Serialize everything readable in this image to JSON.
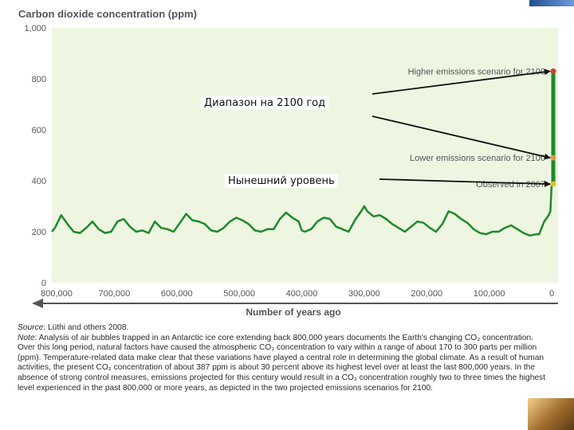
{
  "chart_data": {
    "type": "line",
    "title": "Carbon dioxide concentration (ppm)",
    "xlabel": "Number of years ago",
    "ylabel": "",
    "x_reversed": true,
    "xlim": [
      800000,
      0
    ],
    "ylim": [
      0,
      1000
    ],
    "x_ticks": [
      800000,
      700000,
      600000,
      500000,
      400000,
      300000,
      200000,
      100000,
      0
    ],
    "x_tick_labels": [
      "800,000",
      "700,000",
      "600,000",
      "500,000",
      "400,000",
      "300,000",
      "200,000",
      "100,000",
      "0"
    ],
    "y_ticks": [
      0,
      200,
      400,
      600,
      800,
      1000
    ],
    "y_tick_labels": [
      "0",
      "200",
      "400",
      "600",
      "800",
      "1,000"
    ],
    "grid": false,
    "series": [
      {
        "color": "#1e8a2a",
        "x": [
          800000,
          795000,
          785000,
          775000,
          765000,
          755000,
          745000,
          735000,
          725000,
          715000,
          705000,
          695000,
          685000,
          675000,
          665000,
          655000,
          645000,
          635000,
          625000,
          615000,
          605000,
          595000,
          585000,
          575000,
          565000,
          555000,
          545000,
          535000,
          525000,
          515000,
          505000,
          495000,
          485000,
          475000,
          465000,
          455000,
          445000,
          435000,
          425000,
          415000,
          405000,
          400000,
          395000,
          385000,
          375000,
          365000,
          355000,
          345000,
          335000,
          325000,
          315000,
          305000,
          300000,
          295000,
          285000,
          275000,
          265000,
          255000,
          245000,
          235000,
          225000,
          215000,
          205000,
          195000,
          185000,
          175000,
          165000,
          155000,
          145000,
          135000,
          125000,
          115000,
          105000,
          95000,
          85000,
          75000,
          65000,
          55000,
          45000,
          35000,
          25000,
          20000,
          12000,
          6000,
          2000,
          0
        ],
        "y": [
          200,
          215,
          265,
          230,
          200,
          195,
          215,
          240,
          210,
          195,
          200,
          240,
          250,
          220,
          200,
          205,
          195,
          240,
          215,
          210,
          200,
          235,
          270,
          245,
          240,
          230,
          205,
          200,
          215,
          240,
          255,
          245,
          230,
          205,
          200,
          210,
          210,
          250,
          275,
          255,
          240,
          205,
          200,
          210,
          240,
          255,
          250,
          220,
          210,
          200,
          245,
          280,
          300,
          280,
          260,
          265,
          250,
          230,
          215,
          200,
          220,
          240,
          235,
          215,
          200,
          230,
          280,
          270,
          250,
          235,
          210,
          195,
          190,
          200,
          200,
          215,
          225,
          210,
          195,
          185,
          190,
          190,
          240,
          260,
          280,
          387
        ]
      }
    ],
    "projections": [
      {
        "label": "Higher emissions scenario for 2100",
        "value": 830,
        "marker_color": "#d7402a"
      },
      {
        "label": "Lower emissions scenario for 2100",
        "value": 490,
        "marker_color": "#e49a3a"
      },
      {
        "label": "Observed in 2007",
        "value": 387,
        "marker_color": "#e8c030"
      }
    ]
  },
  "overlay": {
    "range_label": "Диапазон на 2100 год",
    "current_label": "Нынешний уровень"
  },
  "caption": {
    "source_key": "Source",
    "source_text": ": Lüthi and others 2008.",
    "note_key": "Note",
    "note_text": ": Analysis of air bubbles trapped in an Antarctic ice core extending back 800,000 years documents the Earth's changing CO₂ concentration. Over this long period, natural factors have caused the atmospheric CO₂ concentration to vary within a range of about 170 to 300 parts per million (ppm). Temperature-related data make clear that these variations have played a central role in determining the global climate. As a result of human activities, the present CO₂ concentration of about 387 ppm is about 30 percent above its highest level over at least the last 800,000 years. In the absence of strong control measures, emissions projected for this century would result in a CO₂ concentration roughly two to three times the highest level experienced in the past 800,000 or more years, as depicted in the two projected emissions scenarios for 2100."
  },
  "colors": {
    "series": "#1e8a2a",
    "plot_background": "#eef6e2",
    "axis_text": "#555555",
    "arrow": "#111111"
  }
}
